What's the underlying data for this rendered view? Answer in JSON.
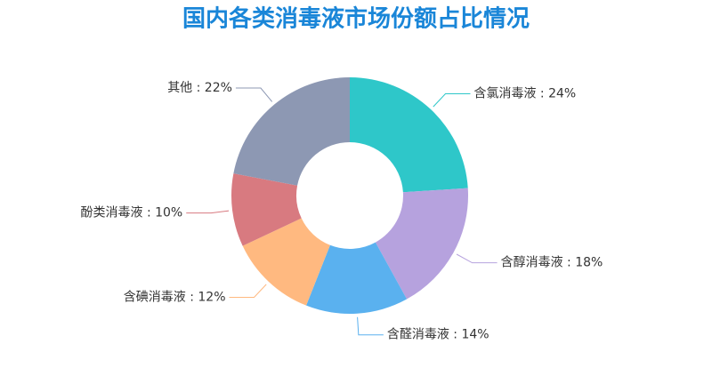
{
  "chart_data": {
    "type": "donut",
    "title": "国内各类消毒液市场份额占比情况",
    "values": [
      24,
      18,
      14,
      12,
      10,
      22
    ],
    "value_labels": [
      "含氯消毒液 : 24%",
      "含醇消毒液 : 18%",
      "含醛消毒液 : 14%",
      "含碘消毒液 : 12%",
      "酚类消毒液 : 10%",
      "其他 : 22%"
    ],
    "colors": [
      "#2ec7c9",
      "#b6a2de",
      "#5ab1ef",
      "#ffb980",
      "#d87a80",
      "#8d98b3"
    ]
  }
}
